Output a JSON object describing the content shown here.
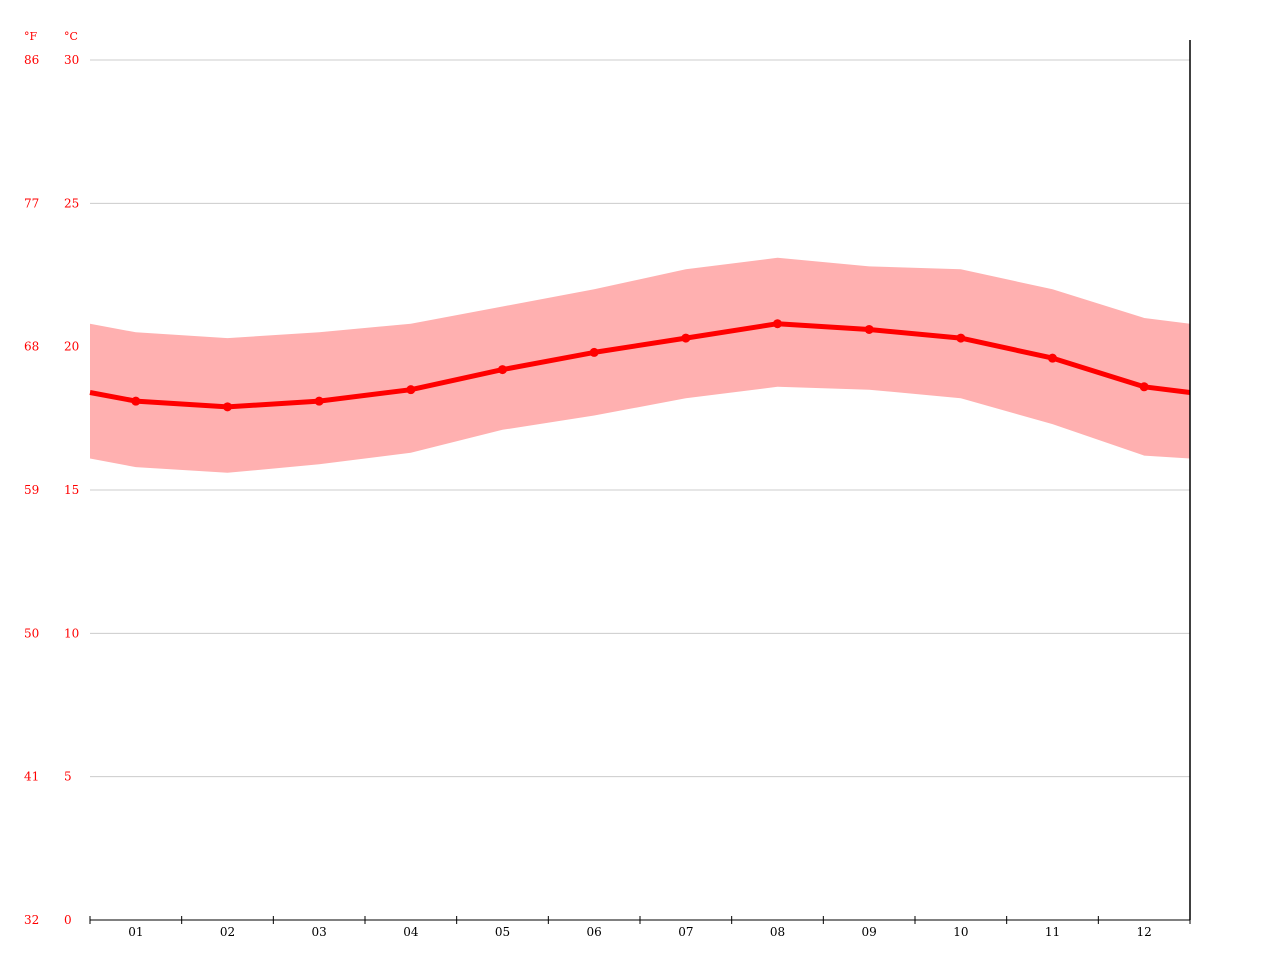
{
  "chart_data": {
    "type": "line",
    "title": "",
    "xlabel": "",
    "ylabel": "",
    "x_unit_labels": {
      "fahrenheit": "°F",
      "celsius": "°C"
    },
    "categories": [
      "01",
      "02",
      "03",
      "04",
      "05",
      "06",
      "07",
      "08",
      "09",
      "10",
      "11",
      "12"
    ],
    "series": [
      {
        "name": "",
        "kind": "line",
        "values": [
          18.1,
          17.9,
          18.1,
          18.5,
          19.2,
          19.8,
          20.3,
          20.8,
          20.6,
          20.3,
          19.6,
          18.6
        ]
      }
    ],
    "band": {
      "upper": [
        20.5,
        20.3,
        20.5,
        20.8,
        21.4,
        22.0,
        22.7,
        23.1,
        22.8,
        22.7,
        22.0,
        21.0
      ],
      "lower": [
        15.8,
        15.6,
        15.9,
        16.3,
        17.1,
        17.6,
        18.2,
        18.6,
        18.5,
        18.2,
        17.3,
        16.2
      ]
    },
    "edge_extension": {
      "left": {
        "value": 18.4,
        "upper": 20.8,
        "lower": 16.1
      },
      "right": {
        "value": 18.4,
        "upper": 20.8,
        "lower": 16.1
      }
    },
    "ylim": [
      0,
      30
    ],
    "y_ticks": [
      {
        "c": "0",
        "f": "32"
      },
      {
        "c": "5",
        "f": "41"
      },
      {
        "c": "10",
        "f": "50"
      },
      {
        "c": "15",
        "f": "59"
      },
      {
        "c": "20",
        "f": "68"
      },
      {
        "c": "25",
        "f": "77"
      },
      {
        "c": "30",
        "f": "86"
      }
    ],
    "grid": true,
    "colors": {
      "line": "#ff0000",
      "band": "#ffb0b0",
      "axis_text": "#ff0000",
      "x_text": "#000000",
      "grid": "#cccccc",
      "axis": "#000000"
    }
  }
}
